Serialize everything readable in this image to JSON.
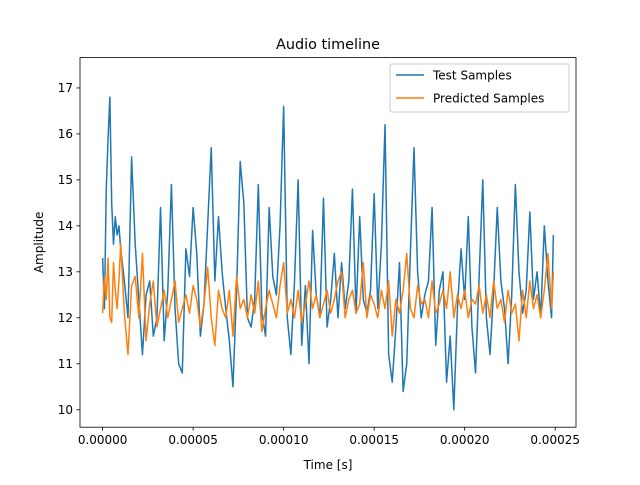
{
  "chart_data": {
    "type": "line",
    "title": "Audio timeline",
    "xlabel": "Time [s]",
    "ylabel": "Amplitude",
    "xlim": [
      -1.25e-05,
      0.0002615
    ],
    "ylim": [
      9.62,
      17.66
    ],
    "xticks": [
      0,
      5e-05,
      0.0001,
      0.00015,
      0.0002,
      0.00025
    ],
    "xtick_labels": [
      "0.00000",
      "0.00005",
      "0.00010",
      "0.00015",
      "0.00020",
      "0.00025"
    ],
    "yticks": [
      10,
      11,
      12,
      13,
      14,
      15,
      16,
      17
    ],
    "ytick_labels": [
      "10",
      "11",
      "12",
      "13",
      "14",
      "15",
      "16",
      "17"
    ],
    "grid": false,
    "legend_position": "top-right",
    "series": [
      {
        "name": "Test Samples",
        "color": "#1f77b4",
        "x": [
          0,
          1e-06,
          2e-06,
          3e-06,
          4e-06,
          5e-06,
          6e-06,
          7e-06,
          8e-06,
          9e-06,
          1e-05,
          1.2e-05,
          1.4e-05,
          1.6e-05,
          1.8e-05,
          2e-05,
          2.2e-05,
          2.4e-05,
          2.6e-05,
          2.8e-05,
          3e-05,
          3.2e-05,
          3.4e-05,
          3.6e-05,
          3.8e-05,
          4e-05,
          4.2e-05,
          4.4e-05,
          4.6e-05,
          4.8e-05,
          5e-05,
          5.2e-05,
          5.4e-05,
          5.6e-05,
          5.8e-05,
          6e-05,
          6.2e-05,
          6.4e-05,
          6.6e-05,
          6.8e-05,
          7e-05,
          7.2e-05,
          7.4e-05,
          7.6e-05,
          7.8e-05,
          8e-05,
          8.2e-05,
          8.4e-05,
          8.6e-05,
          8.8e-05,
          9e-05,
          9.2e-05,
          9.4e-05,
          9.6e-05,
          9.8e-05,
          0.0001,
          0.000102,
          0.000104,
          0.000106,
          0.000108,
          0.00011,
          0.000112,
          0.000114,
          0.000116,
          0.000118,
          0.00012,
          0.000122,
          0.000124,
          0.000126,
          0.000128,
          0.00013,
          0.000132,
          0.000134,
          0.000136,
          0.000138,
          0.00014,
          0.000142,
          0.000144,
          0.000146,
          0.000148,
          0.00015,
          0.000152,
          0.000154,
          0.000156,
          0.000158,
          0.00016,
          0.000162,
          0.000164,
          0.000166,
          0.000168,
          0.00017,
          0.000172,
          0.000174,
          0.000176,
          0.000178,
          0.00018,
          0.000182,
          0.000184,
          0.000186,
          0.000188,
          0.00019,
          0.000192,
          0.000194,
          0.000196,
          0.000198,
          0.0002,
          0.000202,
          0.000204,
          0.000206,
          0.000208,
          0.00021,
          0.000212,
          0.000214,
          0.000216,
          0.000218,
          0.00022,
          0.000222,
          0.000224,
          0.000226,
          0.000228,
          0.00023,
          0.000232,
          0.000234,
          0.000236,
          0.000238,
          0.00024,
          0.000242,
          0.000244,
          0.000246,
          0.000248,
          0.000249
        ],
        "y": [
          13.3,
          12.2,
          14.8,
          15.9,
          16.8,
          14.5,
          13.6,
          14.2,
          13.8,
          14.0,
          13.5,
          12.8,
          12.0,
          15.5,
          13.6,
          12.4,
          11.2,
          12.5,
          12.8,
          11.6,
          12.0,
          14.4,
          11.5,
          12.6,
          14.9,
          12.2,
          11.0,
          10.8,
          13.5,
          12.9,
          14.4,
          13.4,
          11.6,
          12.3,
          14.0,
          15.7,
          12.8,
          14.2,
          13.0,
          12.2,
          11.5,
          10.5,
          12.6,
          15.4,
          14.5,
          12.0,
          11.8,
          12.4,
          14.9,
          12.1,
          11.6,
          14.4,
          12.9,
          12.5,
          14.0,
          16.6,
          12.0,
          11.2,
          12.8,
          15.0,
          11.4,
          12.7,
          11.0,
          13.9,
          12.5,
          12.0,
          14.6,
          11.8,
          12.4,
          13.4,
          12.0,
          13.2,
          12.2,
          12.8,
          14.8,
          12.1,
          14.2,
          12.4,
          12.1,
          12.6,
          14.7,
          12.2,
          13.6,
          16.2,
          11.2,
          10.6,
          11.8,
          13.2,
          10.4,
          11.0,
          13.4,
          15.7,
          13.0,
          12.0,
          12.5,
          12.8,
          14.4,
          11.4,
          12.6,
          13.0,
          10.6,
          11.6,
          10.0,
          12.2,
          13.5,
          12.4,
          14.2,
          11.8,
          10.8,
          12.9,
          15.0,
          12.0,
          11.2,
          12.6,
          14.4,
          12.8,
          12.2,
          11.0,
          12.5,
          14.9,
          13.0,
          12.1,
          12.6,
          14.3,
          12.4,
          13.0,
          12.0,
          14.0,
          12.8,
          12.0,
          13.8
        ]
      },
      {
        "name": "Predicted Samples",
        "color": "#ff7f0e",
        "x": [
          0,
          1e-06,
          2e-06,
          3e-06,
          4e-06,
          5e-06,
          6e-06,
          7e-06,
          8e-06,
          9e-06,
          1e-05,
          1.2e-05,
          1.4e-05,
          1.6e-05,
          1.8e-05,
          2e-05,
          2.2e-05,
          2.4e-05,
          2.6e-05,
          2.8e-05,
          3e-05,
          3.2e-05,
          3.4e-05,
          3.6e-05,
          3.8e-05,
          4e-05,
          4.2e-05,
          4.4e-05,
          4.6e-05,
          4.8e-05,
          5e-05,
          5.2e-05,
          5.4e-05,
          5.6e-05,
          5.8e-05,
          6e-05,
          6.2e-05,
          6.4e-05,
          6.6e-05,
          6.8e-05,
          7e-05,
          7.2e-05,
          7.4e-05,
          7.6e-05,
          7.8e-05,
          8e-05,
          8.2e-05,
          8.4e-05,
          8.6e-05,
          8.8e-05,
          9e-05,
          9.2e-05,
          9.4e-05,
          9.6e-05,
          9.8e-05,
          0.0001,
          0.000102,
          0.000104,
          0.000106,
          0.000108,
          0.00011,
          0.000112,
          0.000114,
          0.000116,
          0.000118,
          0.00012,
          0.000122,
          0.000124,
          0.000126,
          0.000128,
          0.00013,
          0.000132,
          0.000134,
          0.000136,
          0.000138,
          0.00014,
          0.000142,
          0.000144,
          0.000146,
          0.000148,
          0.00015,
          0.000152,
          0.000154,
          0.000156,
          0.000158,
          0.00016,
          0.000162,
          0.000164,
          0.000166,
          0.000168,
          0.00017,
          0.000172,
          0.000174,
          0.000176,
          0.000178,
          0.00018,
          0.000182,
          0.000184,
          0.000186,
          0.000188,
          0.00019,
          0.000192,
          0.000194,
          0.000196,
          0.000198,
          0.0002,
          0.000202,
          0.000204,
          0.000206,
          0.000208,
          0.00021,
          0.000212,
          0.000214,
          0.000216,
          0.000218,
          0.00022,
          0.000222,
          0.000224,
          0.000226,
          0.000228,
          0.00023,
          0.000232,
          0.000234,
          0.000236,
          0.000238,
          0.00024,
          0.000242,
          0.000244,
          0.000246,
          0.000248,
          0.000249
        ],
        "y": [
          12.1,
          12.9,
          12.4,
          13.3,
          12.0,
          11.9,
          13.2,
          12.6,
          12.2,
          12.8,
          13.6,
          12.1,
          11.2,
          12.7,
          12.9,
          12.0,
          13.4,
          11.5,
          12.3,
          12.8,
          11.8,
          12.2,
          12.6,
          12.0,
          12.4,
          12.8,
          11.9,
          12.2,
          12.5,
          12.1,
          12.7,
          12.4,
          11.8,
          12.3,
          13.1,
          12.0,
          11.4,
          12.6,
          12.2,
          12.0,
          12.6,
          11.6,
          12.9,
          12.2,
          12.4,
          12.0,
          12.5,
          12.1,
          12.8,
          11.7,
          12.2,
          12.6,
          12.3,
          12.0,
          12.7,
          13.2,
          12.1,
          12.4,
          12.0,
          12.6,
          11.9,
          12.3,
          12.8,
          12.2,
          12.5,
          12.0,
          12.3,
          12.6,
          12.1,
          12.4,
          12.8,
          13.0,
          12.0,
          12.4,
          12.6,
          12.1,
          12.3,
          13.2,
          12.0,
          12.5,
          12.3,
          12.0,
          12.6,
          12.2,
          12.8,
          11.6,
          12.4,
          12.1,
          12.6,
          13.4,
          12.2,
          12.0,
          12.7,
          12.3,
          12.4,
          12.0,
          12.8,
          12.1,
          12.3,
          12.6,
          12.2,
          13.0,
          12.0,
          12.5,
          12.2,
          12.6,
          12.0,
          12.4,
          12.3,
          12.7,
          12.1,
          12.5,
          12.0,
          12.8,
          12.2,
          12.4,
          11.9,
          12.6,
          12.1,
          12.3,
          11.5,
          12.6,
          12.0,
          12.8,
          12.2,
          12.5,
          12.0,
          12.6,
          13.4,
          12.2,
          13.0
        ]
      }
    ]
  }
}
